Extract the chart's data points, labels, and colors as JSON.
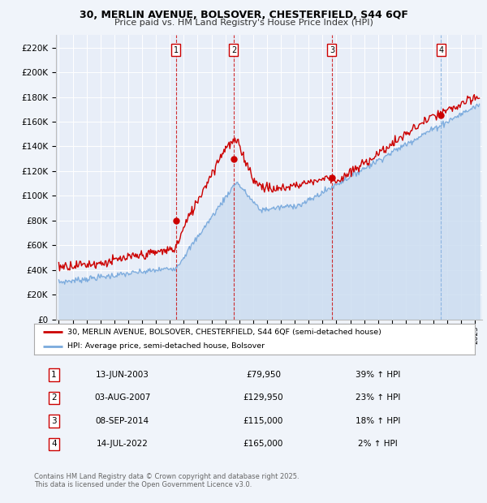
{
  "title_line1": "30, MERLIN AVENUE, BOLSOVER, CHESTERFIELD, S44 6QF",
  "title_line2": "Price paid vs. HM Land Registry's House Price Index (HPI)",
  "background_color": "#f0f4fa",
  "plot_bg_color": "#e8eef8",
  "grid_color": "#ffffff",
  "sale_color": "#cc0000",
  "hpi_color": "#7aaadd",
  "hpi_fill_color": "#ccddf0",
  "ylim": [
    0,
    230000
  ],
  "yticks": [
    0,
    20000,
    40000,
    60000,
    80000,
    100000,
    120000,
    140000,
    160000,
    180000,
    200000,
    220000
  ],
  "ytick_labels": [
    "£0",
    "£20K",
    "£40K",
    "£60K",
    "£80K",
    "£100K",
    "£120K",
    "£140K",
    "£160K",
    "£180K",
    "£200K",
    "£220K"
  ],
  "xmin": 1994.8,
  "xmax": 2025.5,
  "xticks": [
    1995,
    1996,
    1997,
    1998,
    1999,
    2000,
    2001,
    2002,
    2003,
    2004,
    2005,
    2006,
    2007,
    2008,
    2009,
    2010,
    2011,
    2012,
    2013,
    2014,
    2015,
    2016,
    2017,
    2018,
    2019,
    2020,
    2021,
    2022,
    2023,
    2024,
    2025
  ],
  "sale_dates": [
    2003.45,
    2007.6,
    2014.68,
    2022.53
  ],
  "sale_prices": [
    79950,
    129950,
    115000,
    165000
  ],
  "sale_markers": [
    1,
    2,
    3,
    4
  ],
  "vline_colors": [
    "#cc0000",
    "#cc0000",
    "#cc0000",
    "#7aaadd"
  ],
  "sale_label": "30, MERLIN AVENUE, BOLSOVER, CHESTERFIELD, S44 6QF (semi-detached house)",
  "hpi_label": "HPI: Average price, semi-detached house, Bolsover",
  "transaction_labels": [
    {
      "num": 1,
      "date": "13-JUN-2003",
      "price": "£79,950",
      "change": "39% ↑ HPI"
    },
    {
      "num": 2,
      "date": "03-AUG-2007",
      "price": "£129,950",
      "change": "23% ↑ HPI"
    },
    {
      "num": 3,
      "date": "08-SEP-2014",
      "price": "£115,000",
      "change": "18% ↑ HPI"
    },
    {
      "num": 4,
      "date": "14-JUL-2022",
      "price": "£165,000",
      "change": "2% ↑ HPI"
    }
  ],
  "footer_line1": "Contains HM Land Registry data © Crown copyright and database right 2025.",
  "footer_line2": "This data is licensed under the Open Government Licence v3.0."
}
